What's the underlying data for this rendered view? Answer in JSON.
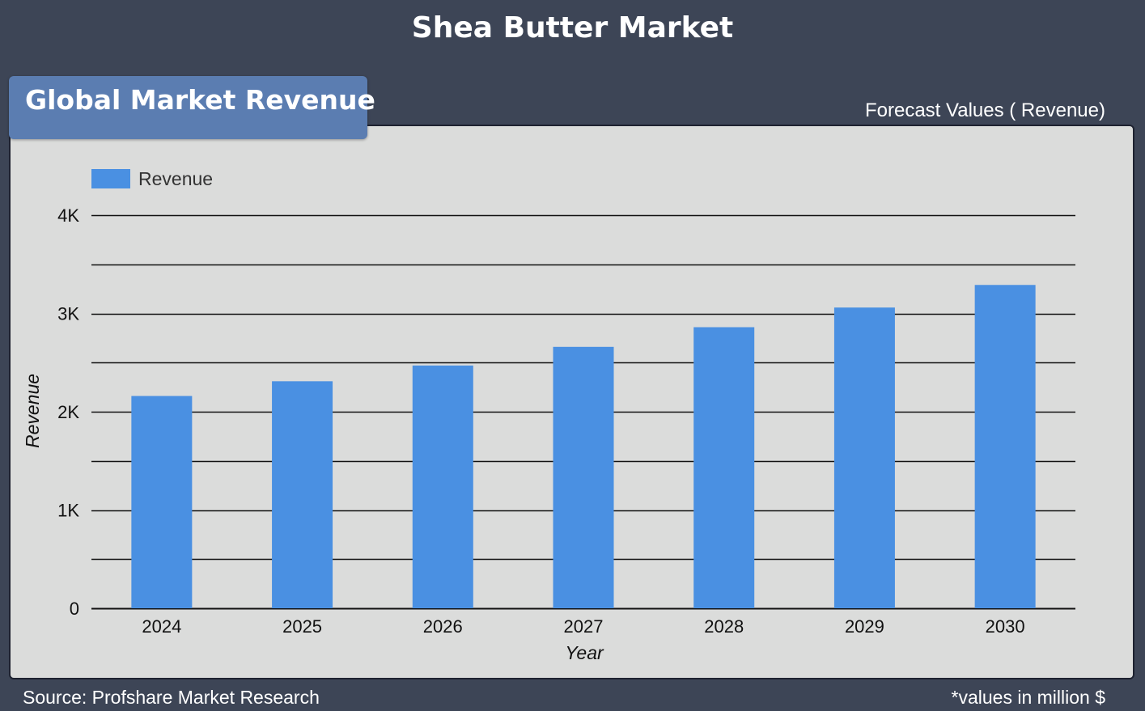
{
  "header": {
    "title": "Shea Butter Market"
  },
  "section": {
    "title": "Global Market Revenue"
  },
  "forecast_label": "Forecast Values ( Revenue)",
  "footer": {
    "source": "Source: Profshare Market Research",
    "note": "*values in million $"
  },
  "colors": {
    "background": "#3d4556",
    "panel": "#dbdcdb",
    "tab": "#5b7db1",
    "bar": "#4a90e2"
  },
  "chart_data": {
    "type": "bar",
    "categories": [
      "2024",
      "2025",
      "2026",
      "2027",
      "2028",
      "2029",
      "2030"
    ],
    "series": [
      {
        "name": "Revenue",
        "values": [
          2160,
          2310,
          2470,
          2660,
          2860,
          3060,
          3290
        ]
      }
    ],
    "xlabel": "Year",
    "ylabel": "Revenue",
    "ylim": [
      0,
      4000
    ],
    "yticks": [
      0,
      1000,
      2000,
      3000,
      4000
    ],
    "ytick_labels": [
      "0",
      "1K",
      "2K",
      "3K",
      "4K"
    ],
    "gridlines": true,
    "legend_position": "top-left"
  }
}
